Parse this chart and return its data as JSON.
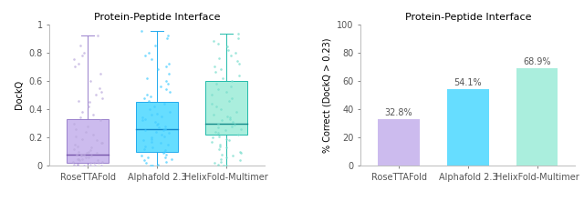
{
  "title_left": "Protein-Peptide Interface",
  "title_right": "Protein-Peptide Interface",
  "boxplot_labels": [
    "RoseTTAFold",
    "Alphafold 2.3",
    "HelixFold-Multimer"
  ],
  "bar_labels": [
    "RoseTTAFold",
    "Alphafold 2.3",
    "HelixFold-Multimer"
  ],
  "bar_values": [
    32.8,
    54.1,
    68.9
  ],
  "bar_colors": [
    "#ccbbee",
    "#66ddff",
    "#aaeedd"
  ],
  "box_face_colors": [
    "#ccbbee",
    "#66ddff",
    "#aaeedd"
  ],
  "box_edge_colors": [
    "#9980cc",
    "#22aaee",
    "#22bbaa"
  ],
  "median_colors": [
    "#7755aa",
    "#1188cc",
    "#118888"
  ],
  "scatter_colors": [
    "#bbaadd",
    "#44ccff",
    "#77ddcc"
  ],
  "ylabel_left": "DockQ",
  "ylabel_right": "% Correct (DockQ > 0.23)",
  "ylim_left": [
    0,
    1.0
  ],
  "ylim_right": [
    0,
    100
  ],
  "yticks_left": [
    0.0,
    0.2,
    0.4,
    0.6,
    0.8,
    1.0
  ],
  "yticks_right": [
    0,
    20,
    40,
    60,
    80,
    100
  ],
  "box_stats": {
    "RoseTTAFold": {
      "q1": 0.02,
      "median": 0.08,
      "q3": 0.33,
      "whislo": 0.0,
      "whishi": 0.92
    },
    "Alphafold 2.3": {
      "q1": 0.1,
      "median": 0.26,
      "q3": 0.45,
      "whislo": 0.0,
      "whishi": 0.95
    },
    "HelixFold-Multimer": {
      "q1": 0.22,
      "median": 0.3,
      "q3": 0.6,
      "whislo": 0.0,
      "whishi": 0.93
    }
  },
  "scatter_data": {
    "RoseTTAFold": [
      0.0,
      0.0,
      0.0,
      0.0,
      0.01,
      0.01,
      0.01,
      0.02,
      0.02,
      0.02,
      0.03,
      0.03,
      0.04,
      0.04,
      0.05,
      0.05,
      0.05,
      0.06,
      0.06,
      0.07,
      0.07,
      0.08,
      0.08,
      0.08,
      0.09,
      0.09,
      0.1,
      0.1,
      0.11,
      0.12,
      0.13,
      0.14,
      0.15,
      0.16,
      0.16,
      0.18,
      0.19,
      0.21,
      0.22,
      0.24,
      0.26,
      0.28,
      0.3,
      0.32,
      0.34,
      0.36,
      0.38,
      0.42,
      0.45,
      0.46,
      0.48,
      0.5,
      0.52,
      0.55,
      0.6,
      0.65,
      0.7,
      0.72,
      0.75,
      0.78,
      0.8,
      0.85,
      0.92
    ],
    "Alphafold 2.3": [
      0.0,
      0.0,
      0.01,
      0.02,
      0.03,
      0.04,
      0.05,
      0.06,
      0.06,
      0.07,
      0.08,
      0.09,
      0.1,
      0.11,
      0.12,
      0.13,
      0.14,
      0.15,
      0.16,
      0.17,
      0.18,
      0.19,
      0.2,
      0.21,
      0.22,
      0.23,
      0.24,
      0.25,
      0.25,
      0.26,
      0.27,
      0.28,
      0.29,
      0.3,
      0.31,
      0.32,
      0.33,
      0.34,
      0.35,
      0.36,
      0.37,
      0.38,
      0.4,
      0.42,
      0.44,
      0.46,
      0.48,
      0.49,
      0.5,
      0.52,
      0.54,
      0.56,
      0.58,
      0.6,
      0.62,
      0.65,
      0.68,
      0.7,
      0.72,
      0.75,
      0.78,
      0.8,
      0.85,
      0.9,
      0.92,
      0.95
    ],
    "HelixFold-Multimer": [
      0.0,
      0.0,
      0.01,
      0.02,
      0.03,
      0.04,
      0.05,
      0.06,
      0.07,
      0.08,
      0.09,
      0.1,
      0.12,
      0.13,
      0.14,
      0.15,
      0.17,
      0.18,
      0.19,
      0.2,
      0.21,
      0.22,
      0.23,
      0.24,
      0.25,
      0.26,
      0.27,
      0.28,
      0.29,
      0.3,
      0.31,
      0.32,
      0.33,
      0.34,
      0.35,
      0.36,
      0.38,
      0.4,
      0.42,
      0.44,
      0.46,
      0.48,
      0.5,
      0.52,
      0.54,
      0.56,
      0.58,
      0.6,
      0.62,
      0.64,
      0.66,
      0.68,
      0.7,
      0.72,
      0.74,
      0.76,
      0.78,
      0.8,
      0.82,
      0.84,
      0.86,
      0.88,
      0.9,
      0.93
    ]
  },
  "background_color": "#ffffff",
  "font_size_title": 8,
  "font_size_label": 7,
  "font_size_tick": 7,
  "font_size_bar_label": 7
}
